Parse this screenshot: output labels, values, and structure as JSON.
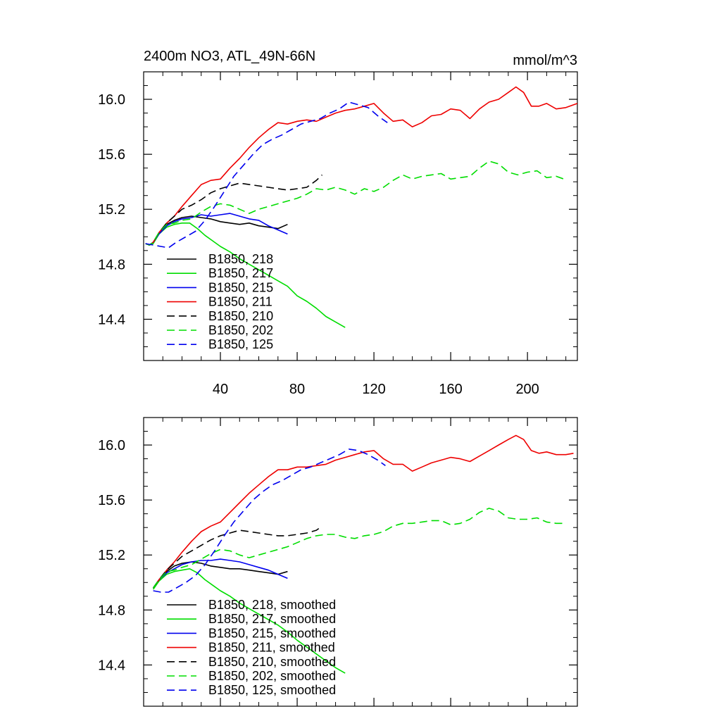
{
  "chart_data": [
    {
      "type": "line",
      "title": "2400m NO3, ATL_49N-66N",
      "units": "mmol/m^3",
      "xlim": [
        0,
        226
      ],
      "ylim": [
        14.1,
        16.2
      ],
      "x_ticks": [
        40,
        80,
        120,
        160,
        200
      ],
      "y_ticks": [
        14.4,
        14.8,
        15.2,
        15.6,
        16.0
      ],
      "y_tick_labels": [
        "14.4",
        "14.8",
        "15.2",
        "15.6",
        "16.0"
      ],
      "x_tick_labels": [
        "40",
        "80",
        "120",
        "160",
        "200"
      ],
      "grid": false,
      "legend_position": "lower-left",
      "series": [
        {
          "name": "B1850, 218",
          "color": "#000000",
          "dash": "solid",
          "x": [
            1,
            3,
            5,
            8,
            12,
            16,
            20,
            25,
            30,
            35,
            40,
            45,
            50,
            55,
            60,
            65,
            70,
            75
          ],
          "y": [
            14.95,
            14.94,
            14.96,
            15.03,
            15.09,
            15.12,
            15.14,
            15.15,
            15.14,
            15.13,
            15.11,
            15.1,
            15.09,
            15.1,
            15.08,
            15.07,
            15.06,
            15.09
          ]
        },
        {
          "name": "B1850, 217",
          "color": "#00dd00",
          "dash": "solid",
          "x": [
            1,
            3,
            5,
            8,
            12,
            16,
            20,
            24,
            28,
            32,
            36,
            40,
            45,
            50,
            55,
            60,
            65,
            70,
            75,
            80,
            85,
            90,
            95,
            100,
            105
          ],
          "y": [
            14.95,
            14.94,
            14.95,
            15.02,
            15.07,
            15.09,
            15.1,
            15.1,
            15.06,
            15.01,
            14.97,
            14.93,
            14.89,
            14.84,
            14.8,
            14.76,
            14.72,
            14.68,
            14.64,
            14.57,
            14.53,
            14.48,
            14.42,
            14.38,
            14.34
          ]
        },
        {
          "name": "B1850, 215",
          "color": "#0000ee",
          "dash": "solid",
          "x": [
            1,
            3,
            5,
            8,
            12,
            16,
            20,
            25,
            30,
            35,
            40,
            45,
            50,
            55,
            60,
            65,
            70,
            75
          ],
          "y": [
            14.95,
            14.94,
            14.96,
            15.02,
            15.08,
            15.11,
            15.13,
            15.14,
            15.16,
            15.15,
            15.16,
            15.17,
            15.15,
            15.13,
            15.12,
            15.08,
            15.05,
            15.02
          ]
        },
        {
          "name": "B1850, 211",
          "color": "#ee0000",
          "dash": "solid",
          "x": [
            1,
            3,
            5,
            8,
            12,
            16,
            20,
            25,
            30,
            35,
            40,
            45,
            50,
            55,
            60,
            65,
            70,
            75,
            80,
            85,
            90,
            95,
            100,
            105,
            110,
            115,
            120,
            125,
            130,
            135,
            140,
            145,
            150,
            155,
            160,
            165,
            170,
            175,
            180,
            185,
            190,
            194,
            198,
            202,
            206,
            210,
            215,
            220,
            226
          ],
          "y": [
            14.95,
            14.94,
            14.96,
            15.03,
            15.1,
            15.15,
            15.22,
            15.3,
            15.38,
            15.41,
            15.42,
            15.5,
            15.57,
            15.65,
            15.72,
            15.78,
            15.83,
            15.82,
            15.84,
            15.85,
            15.84,
            15.87,
            15.9,
            15.92,
            15.93,
            15.95,
            15.97,
            15.9,
            15.84,
            15.85,
            15.8,
            15.83,
            15.88,
            15.89,
            15.93,
            15.92,
            15.86,
            15.93,
            15.98,
            16.0,
            16.05,
            16.09,
            16.05,
            15.95,
            15.95,
            15.97,
            15.93,
            15.94,
            15.97
          ]
        },
        {
          "name": "B1850, 210",
          "color": "#000000",
          "dash": "dashed",
          "x": [
            1,
            3,
            5,
            8,
            12,
            16,
            20,
            25,
            30,
            35,
            40,
            45,
            50,
            55,
            60,
            65,
            70,
            75,
            80,
            85,
            90,
            93
          ],
          "y": [
            14.95,
            14.94,
            14.96,
            15.03,
            15.1,
            15.15,
            15.2,
            15.23,
            15.27,
            15.32,
            15.35,
            15.37,
            15.39,
            15.38,
            15.37,
            15.36,
            15.35,
            15.34,
            15.35,
            15.36,
            15.41,
            15.45
          ]
        },
        {
          "name": "B1850, 202",
          "color": "#00dd00",
          "dash": "dashed",
          "x": [
            1,
            3,
            5,
            8,
            12,
            16,
            20,
            25,
            30,
            35,
            40,
            45,
            50,
            55,
            60,
            65,
            70,
            75,
            80,
            85,
            90,
            95,
            100,
            105,
            110,
            115,
            120,
            125,
            130,
            135,
            140,
            145,
            150,
            155,
            160,
            165,
            170,
            175,
            180,
            185,
            190,
            195,
            200,
            205,
            210,
            215,
            219
          ],
          "y": [
            14.95,
            14.94,
            14.96,
            15.03,
            15.09,
            15.1,
            15.12,
            15.13,
            15.18,
            15.22,
            15.24,
            15.23,
            15.2,
            15.17,
            15.2,
            15.22,
            15.24,
            15.26,
            15.28,
            15.31,
            15.35,
            15.34,
            15.36,
            15.34,
            15.31,
            15.35,
            15.33,
            15.36,
            15.41,
            15.45,
            15.42,
            15.44,
            15.45,
            15.46,
            15.42,
            15.43,
            15.44,
            15.5,
            15.55,
            15.53,
            15.47,
            15.45,
            15.47,
            15.48,
            15.43,
            15.44,
            15.42
          ]
        },
        {
          "name": "B1850, 125",
          "color": "#0000ee",
          "dash": "dashed",
          "x": [
            1,
            5,
            9,
            13,
            17,
            22,
            27,
            32,
            37,
            42,
            47,
            52,
            57,
            62,
            67,
            72,
            77,
            82,
            87,
            92,
            97,
            102,
            107,
            112,
            117,
            122,
            127
          ],
          "y": [
            14.95,
            14.94,
            14.93,
            14.92,
            14.96,
            15.0,
            15.04,
            15.12,
            15.22,
            15.33,
            15.44,
            15.52,
            15.6,
            15.67,
            15.71,
            15.74,
            15.78,
            15.82,
            15.84,
            15.86,
            15.9,
            15.93,
            15.98,
            15.96,
            15.94,
            15.88,
            15.83
          ]
        }
      ]
    },
    {
      "type": "line",
      "title": "",
      "units": "",
      "xlim": [
        0,
        226
      ],
      "ylim": [
        14.1,
        16.2
      ],
      "x_ticks": [
        40,
        80,
        120,
        160,
        200
      ],
      "y_ticks": [
        14.4,
        14.8,
        15.2,
        15.6,
        16.0
      ],
      "y_tick_labels": [
        "14.4",
        "14.8",
        "15.2",
        "15.6",
        "16.0"
      ],
      "grid": false,
      "legend_position": "lower-left",
      "series": [
        {
          "name": "B1850, 218, smoothed",
          "color": "#000000",
          "dash": "solid",
          "x": [
            5,
            8,
            12,
            16,
            20,
            25,
            30,
            35,
            40,
            45,
            50,
            55,
            60,
            65,
            70,
            75
          ],
          "y": [
            14.96,
            15.02,
            15.08,
            15.12,
            15.14,
            15.15,
            15.14,
            15.12,
            15.11,
            15.1,
            15.1,
            15.09,
            15.08,
            15.07,
            15.06,
            15.08
          ]
        },
        {
          "name": "B1850, 217, smoothed",
          "color": "#00dd00",
          "dash": "solid",
          "x": [
            5,
            8,
            12,
            16,
            20,
            24,
            28,
            32,
            36,
            40,
            45,
            50,
            55,
            60,
            65,
            70,
            75,
            80,
            85,
            90,
            95,
            100,
            105
          ],
          "y": [
            14.95,
            15.01,
            15.06,
            15.08,
            15.09,
            15.1,
            15.07,
            15.02,
            14.98,
            14.94,
            14.9,
            14.85,
            14.81,
            14.77,
            14.73,
            14.69,
            14.64,
            14.58,
            14.53,
            14.48,
            14.43,
            14.38,
            14.34
          ]
        },
        {
          "name": "B1850, 215, smoothed",
          "color": "#0000ee",
          "dash": "solid",
          "x": [
            5,
            8,
            12,
            16,
            20,
            25,
            30,
            35,
            40,
            45,
            50,
            55,
            60,
            65,
            70,
            75
          ],
          "y": [
            14.96,
            15.02,
            15.07,
            15.1,
            15.13,
            15.15,
            15.16,
            15.16,
            15.17,
            15.16,
            15.15,
            15.13,
            15.11,
            15.09,
            15.06,
            15.03
          ]
        },
        {
          "name": "B1850, 211, smoothed",
          "color": "#ee0000",
          "dash": "solid",
          "x": [
            5,
            8,
            12,
            16,
            20,
            25,
            30,
            35,
            40,
            45,
            50,
            55,
            60,
            65,
            70,
            75,
            80,
            85,
            90,
            95,
            100,
            105,
            110,
            115,
            120,
            125,
            130,
            135,
            140,
            145,
            150,
            155,
            160,
            165,
            170,
            175,
            180,
            185,
            190,
            194,
            198,
            202,
            206,
            210,
            215,
            220,
            224
          ],
          "y": [
            14.96,
            15.02,
            15.09,
            15.15,
            15.22,
            15.3,
            15.37,
            15.41,
            15.44,
            15.51,
            15.58,
            15.65,
            15.71,
            15.77,
            15.82,
            15.82,
            15.84,
            15.84,
            15.85,
            15.86,
            15.89,
            15.91,
            15.93,
            15.95,
            15.96,
            15.9,
            15.86,
            15.86,
            15.81,
            15.84,
            15.87,
            15.89,
            15.91,
            15.9,
            15.88,
            15.92,
            15.96,
            16.0,
            16.04,
            16.07,
            16.04,
            15.96,
            15.94,
            15.95,
            15.93,
            15.93,
            15.94
          ]
        },
        {
          "name": "B1850, 210, smoothed",
          "color": "#000000",
          "dash": "dashed",
          "x": [
            5,
            8,
            12,
            16,
            20,
            25,
            30,
            35,
            40,
            45,
            50,
            55,
            60,
            65,
            70,
            75,
            80,
            85,
            90,
            93
          ],
          "y": [
            14.96,
            15.02,
            15.09,
            15.14,
            15.19,
            15.23,
            15.27,
            15.31,
            15.34,
            15.36,
            15.38,
            15.37,
            15.36,
            15.35,
            15.34,
            15.34,
            15.35,
            15.36,
            15.38,
            15.41
          ]
        },
        {
          "name": "B1850, 202, smoothed",
          "color": "#00dd00",
          "dash": "dashed",
          "x": [
            5,
            8,
            12,
            16,
            20,
            25,
            30,
            35,
            40,
            45,
            50,
            55,
            60,
            65,
            70,
            75,
            80,
            85,
            90,
            95,
            100,
            105,
            110,
            115,
            120,
            125,
            130,
            135,
            140,
            145,
            150,
            155,
            160,
            165,
            170,
            175,
            180,
            185,
            190,
            195,
            200,
            205,
            210,
            215,
            219
          ],
          "y": [
            14.96,
            15.02,
            15.08,
            15.09,
            15.11,
            15.13,
            15.17,
            15.21,
            15.24,
            15.23,
            15.2,
            15.18,
            15.2,
            15.22,
            15.24,
            15.26,
            15.29,
            15.32,
            15.34,
            15.35,
            15.35,
            15.33,
            15.32,
            15.34,
            15.35,
            15.37,
            15.41,
            15.43,
            15.43,
            15.44,
            15.45,
            15.45,
            15.42,
            15.43,
            15.46,
            15.51,
            15.54,
            15.52,
            15.47,
            15.46,
            15.46,
            15.47,
            15.44,
            15.43,
            15.43
          ]
        },
        {
          "name": "B1850, 125, smoothed",
          "color": "#0000ee",
          "dash": "dashed",
          "x": [
            5,
            9,
            13,
            17,
            22,
            27,
            32,
            37,
            42,
            47,
            52,
            57,
            62,
            67,
            72,
            77,
            82,
            87,
            92,
            97,
            102,
            107,
            112,
            117,
            122,
            126
          ],
          "y": [
            14.94,
            14.93,
            14.93,
            14.96,
            15.0,
            15.05,
            15.13,
            15.23,
            15.34,
            15.44,
            15.52,
            15.6,
            15.66,
            15.71,
            15.74,
            15.78,
            15.82,
            15.84,
            15.87,
            15.9,
            15.93,
            15.97,
            15.96,
            15.93,
            15.89,
            15.85
          ]
        }
      ]
    }
  ]
}
